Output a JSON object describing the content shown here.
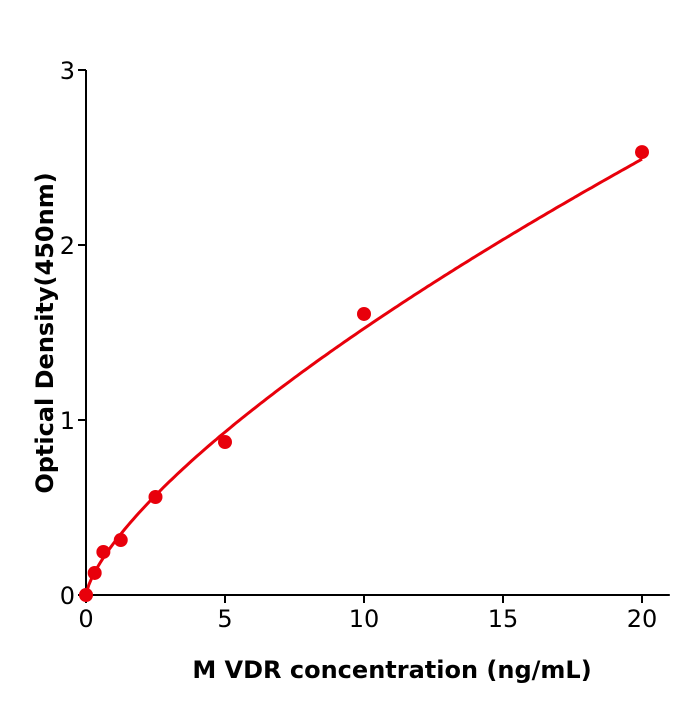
{
  "chart_data": {
    "type": "scatter",
    "title": "",
    "xlabel": "M  VDR concentration (ng/mL)",
    "ylabel": "Optical Density(450nm)",
    "xlim": [
      0,
      21
    ],
    "ylim": [
      0,
      3
    ],
    "xticks": [
      0,
      5,
      10,
      15,
      20
    ],
    "yticks": [
      0,
      1,
      2,
      3
    ],
    "grid": false,
    "color": "#e8000b",
    "series": [
      {
        "x": [
          0,
          0.3125,
          0.625,
          1.25,
          2.5,
          5,
          10,
          20
        ],
        "y": [
          0.0,
          0.126,
          0.246,
          0.314,
          0.56,
          0.874,
          1.606,
          2.531
        ],
        "fit_line": true
      }
    ]
  }
}
